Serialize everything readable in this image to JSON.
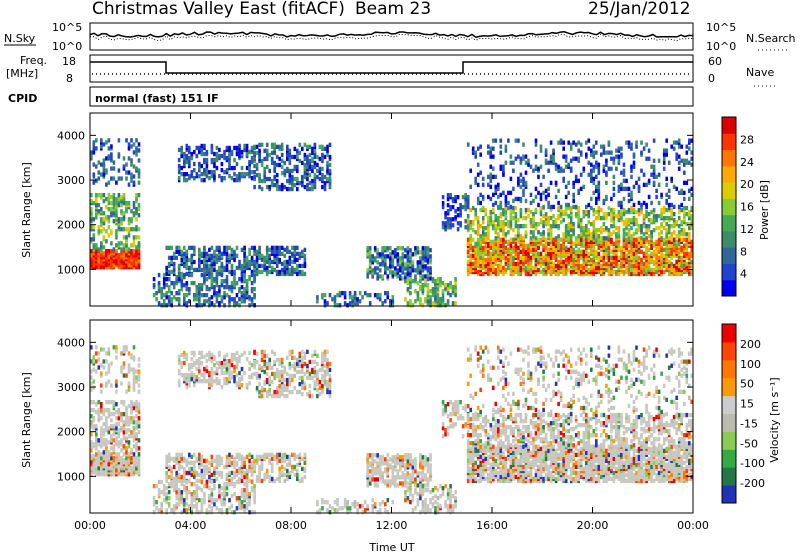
{
  "header": {
    "station": "Christmas Valley East (fitACF)",
    "beam": "Beam 23",
    "date": "25/Jan/2012"
  },
  "top_panels": {
    "nsky_label": "N.Sky",
    "nsearch_label": "N.Search",
    "nsky_ticks_left": [
      "10^5",
      "10^0"
    ],
    "nsky_ticks_right": [
      "10^5",
      "10^0"
    ],
    "freq_label": "Freq.",
    "freq_unit": "[MHz]",
    "freq_ticks": [
      "18",
      "8"
    ],
    "nave_label": "Nave",
    "nave_ticks": [
      "60",
      "0"
    ],
    "cpid_label": "CPID",
    "cpid_value": "normal (fast) 151 IF"
  },
  "chart_data": [
    {
      "type": "heatmap",
      "name": "power-panel",
      "ylabel": "Slant Range [km]",
      "xlabel": "",
      "x_ticks": [
        "00:00",
        "04:00",
        "08:00",
        "12:00",
        "16:00",
        "20:00",
        "00:00"
      ],
      "y_ticks": [
        "1000",
        "2000",
        "3000",
        "4000"
      ],
      "xlim_hours": [
        0,
        24
      ],
      "ylim_km": [
        180,
        4500
      ],
      "colorbar": {
        "label": "Power [dB]",
        "ticks": [
          "28",
          "24",
          "20",
          "16",
          "12",
          "8",
          "4"
        ],
        "colors": [
          "#0000ee",
          "#2244cc",
          "#336699",
          "#3c8c6a",
          "#44aa55",
          "#88cc33",
          "#ddcc00",
          "#ffaa00",
          "#ff7700",
          "#ff3300",
          "#dd0000"
        ]
      }
    },
    {
      "type": "heatmap",
      "name": "velocity-panel",
      "ylabel": "Slant Range [km]",
      "xlabel": "Time UT",
      "x_ticks": [
        "00:00",
        "04:00",
        "08:00",
        "12:00",
        "16:00",
        "20:00",
        "00:00"
      ],
      "y_ticks": [
        "1000",
        "2000",
        "3000",
        "4000"
      ],
      "xlim_hours": [
        0,
        24
      ],
      "ylim_km": [
        180,
        4500
      ],
      "colorbar": {
        "label": "Velocity [m s⁻¹]",
        "ticks": [
          "200",
          "100",
          "50",
          "15",
          "-15",
          "-50",
          "-100",
          "-200"
        ],
        "colors": [
          "#2233bb",
          "#227744",
          "#33aa44",
          "#88cc55",
          "#bbbbb0",
          "#cccccc",
          "#ff9900",
          "#ff7700",
          "#ff4400",
          "#ee0000"
        ]
      }
    }
  ]
}
